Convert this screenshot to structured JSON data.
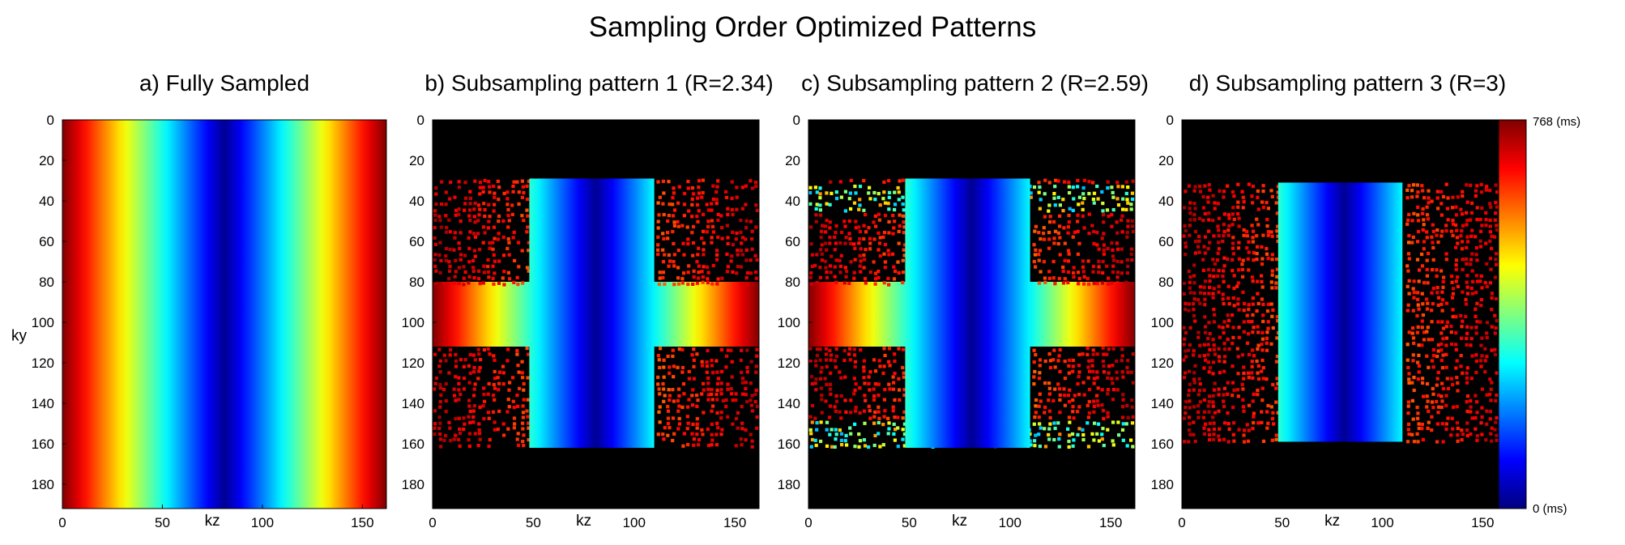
{
  "figure_title": "Sampling Order Optimized Patterns",
  "colors": {
    "background": "#000000",
    "frame": "#000000",
    "jet_stops": [
      "#00007f",
      "#0000ff",
      "#007fff",
      "#00ffff",
      "#7fff7f",
      "#ffff00",
      "#ff7f00",
      "#ff0000",
      "#7f0000"
    ]
  },
  "chart_data": [
    {
      "type": "heatmap",
      "title": "a) Fully Sampled",
      "xlabel": "kz",
      "ylabel": "ky",
      "xlim": [
        0,
        162
      ],
      "ylim": [
        0,
        192
      ],
      "xticks": [
        0,
        50,
        100,
        150
      ],
      "xtick_labels": [
        "0",
        "50",
        "100",
        "150"
      ],
      "yticks": [
        0,
        20,
        40,
        60,
        80,
        100,
        120,
        140,
        160,
        180
      ],
      "ytick_labels": [
        "0",
        "20",
        "40",
        "60",
        "80",
        "100",
        "120",
        "140",
        "160",
        "180"
      ],
      "value": "acquisition time (ms), increases with |kz - 81|, full k-space sampled",
      "sampled_rows": [
        [
          0,
          192
        ]
      ],
      "full_bands": [
        [
          0,
          192
        ]
      ],
      "dense_center_kz": [
        0,
        162
      ],
      "colored_scatter_bands": []
    },
    {
      "type": "heatmap",
      "title": "b)  Subsampling pattern 1 (R=2.34)",
      "xlabel": "kz",
      "ylabel": "",
      "xlim": [
        0,
        162
      ],
      "ylim": [
        0,
        192
      ],
      "xticks": [
        0,
        50,
        100,
        150
      ],
      "xtick_labels": [
        "0",
        "50",
        "100",
        "150"
      ],
      "yticks": [
        0,
        20,
        40,
        60,
        80,
        100,
        120,
        140,
        160,
        180
      ],
      "ytick_labels": [
        "0",
        "20",
        "40",
        "60",
        "80",
        "100",
        "120",
        "140",
        "160",
        "180"
      ],
      "acceleration_R": 2.34,
      "sampled_rows": [
        [
          29,
          162
        ]
      ],
      "full_bands": [
        [
          80,
          112
        ]
      ],
      "dense_center_kz": [
        48,
        110
      ],
      "colored_scatter_bands": []
    },
    {
      "type": "heatmap",
      "title": "c)  Subsampling pattern 2 (R=2.59)",
      "xlabel": "kz",
      "ylabel": "",
      "xlim": [
        0,
        162
      ],
      "ylim": [
        0,
        192
      ],
      "xticks": [
        0,
        50,
        100,
        150
      ],
      "xtick_labels": [
        "0",
        "50",
        "100",
        "150"
      ],
      "yticks": [
        0,
        20,
        40,
        60,
        80,
        100,
        120,
        140,
        160,
        180
      ],
      "ytick_labels": [
        "0",
        "20",
        "40",
        "60",
        "80",
        "100",
        "120",
        "140",
        "160",
        "180"
      ],
      "acceleration_R": 2.59,
      "sampled_rows": [
        [
          29,
          162
        ]
      ],
      "full_bands": [
        [
          80,
          112
        ]
      ],
      "dense_center_kz": [
        48,
        110
      ],
      "colored_scatter_bands": [
        [
          30,
          45
        ],
        [
          146,
          161
        ]
      ]
    },
    {
      "type": "heatmap",
      "title": "d)  Subsampling pattern 3 (R=3)",
      "xlabel": "kz",
      "ylabel": "",
      "xlim": [
        0,
        162
      ],
      "ylim": [
        0,
        192
      ],
      "xticks": [
        0,
        50,
        100,
        150
      ],
      "xtick_labels": [
        "0",
        "50",
        "100",
        "150"
      ],
      "yticks": [
        0,
        20,
        40,
        60,
        80,
        100,
        120,
        140,
        160,
        180
      ],
      "ytick_labels": [
        "0",
        "20",
        "40",
        "60",
        "80",
        "100",
        "120",
        "140",
        "160",
        "180"
      ],
      "acceleration_R": 3,
      "sampled_rows": [
        [
          31,
          159
        ]
      ],
      "full_bands": [],
      "dense_center_kz": [
        48,
        110
      ],
      "colored_scatter_bands": []
    }
  ],
  "colorbar": {
    "min": 0,
    "max": 768,
    "min_label": "0 (ms)",
    "max_label": "768 (ms)",
    "colormap": "jet"
  }
}
